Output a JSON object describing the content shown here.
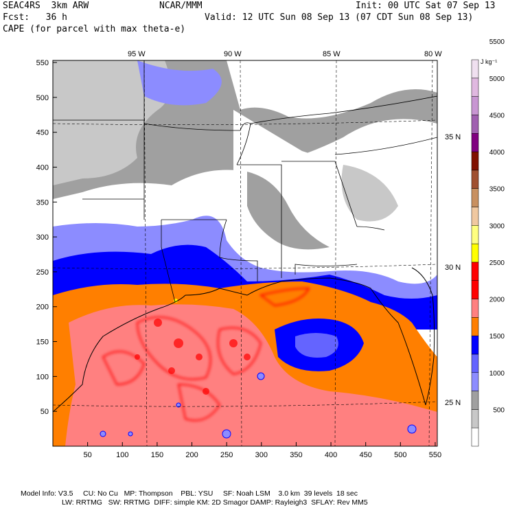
{
  "header": {
    "model": "SEAC4RS  3km ARW",
    "org": "NCAR/MMM",
    "init": "Init: 00 UTC Sat 07 Sep 13",
    "fcst": "Fcst:   36 h",
    "valid": "Valid: 12 UTC Sun 08 Sep 13 (07 CDT Sun 08 Sep 13)",
    "field": "CAPE (for parcel with max theta-e)"
  },
  "lon_labels": [
    "95 W",
    "90 W",
    "85 W",
    "80 W"
  ],
  "lat_labels": [
    "35 N",
    "30 N",
    "25 N"
  ],
  "x_ticks": [
    "50",
    "100",
    "150",
    "200",
    "250",
    "300",
    "350",
    "400",
    "450",
    "500",
    "550"
  ],
  "y_ticks": [
    "550",
    "500",
    "450",
    "400",
    "350",
    "300",
    "250",
    "200",
    "150",
    "100",
    "50"
  ],
  "colorbar": {
    "units": "J kg⁻¹",
    "labels": [
      "5500",
      "5000",
      "4500",
      "4000",
      "3500",
      "3000",
      "2500",
      "2000",
      "1500",
      "1000",
      "500"
    ],
    "colors": [
      "#ffffff",
      "#c8c8c8",
      "#a0a0a0",
      "#8c8cff",
      "#6464ff",
      "#0000ff",
      "#ff7f00",
      "#ff8080",
      "#ff0000",
      "#ff0000",
      "#ffff00",
      "#ffff80",
      "#f0c8a0",
      "#c89060",
      "#a05030",
      "#801000",
      "#800080",
      "#a060b0",
      "#c896d2",
      "#e0b8e0",
      "#f0e0f0"
    ]
  },
  "footer": {
    "line1": "Model Info: V3.5     CU: No Cu   MP: Thompson    PBL: YSU     SF: Noah LSM    3.0 km  39 levels  18 sec",
    "line2": "LW: RRTMG   SW: RRTMG  DIFF: simple KM: 2D Smagor DAMP: Rayleigh3  SFLAY: Rev MM5"
  }
}
